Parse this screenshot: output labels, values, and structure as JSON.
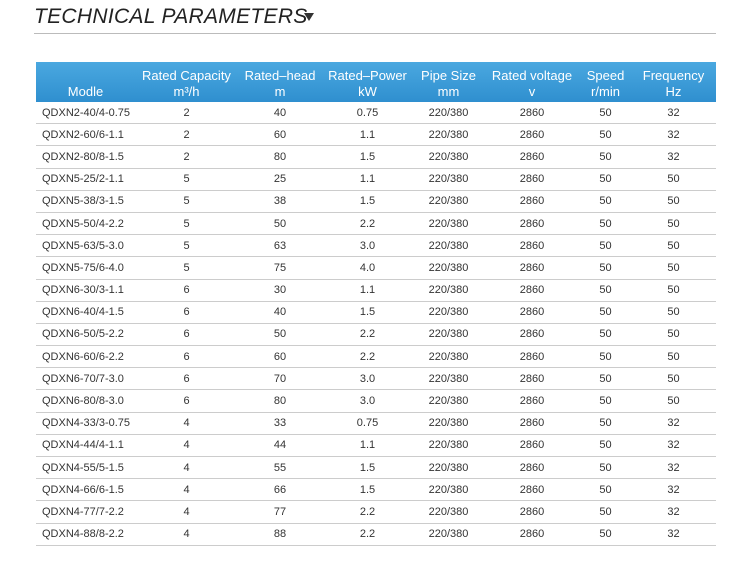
{
  "header": {
    "title": "TECHNICAL PARAMETERS"
  },
  "table": {
    "columns": [
      [
        "Modle"
      ],
      [
        "Rated Capacity",
        "m³/h"
      ],
      [
        "Rated–head",
        "m"
      ],
      [
        "Rated–Power",
        "kW"
      ],
      [
        "Pipe Size",
        "mm"
      ],
      [
        "Rated voltage",
        "v"
      ],
      [
        "Speed",
        "r/min"
      ],
      [
        "Frequency",
        "Hz"
      ]
    ],
    "rows": [
      [
        "QDXN2-40/4-0.75",
        "2",
        "40",
        "0.75",
        "220/380",
        "2860",
        "50",
        "32"
      ],
      [
        "QDXN2-60/6-1.1",
        "2",
        "60",
        "1.1",
        "220/380",
        "2860",
        "50",
        "32"
      ],
      [
        "QDXN2-80/8-1.5",
        "2",
        "80",
        "1.5",
        "220/380",
        "2860",
        "50",
        "32"
      ],
      [
        "QDXN5-25/2-1.1",
        "5",
        "25",
        "1.1",
        "220/380",
        "2860",
        "50",
        "50"
      ],
      [
        "QDXN5-38/3-1.5",
        "5",
        "38",
        "1.5",
        "220/380",
        "2860",
        "50",
        "50"
      ],
      [
        "QDXN5-50/4-2.2",
        "5",
        "50",
        "2.2",
        "220/380",
        "2860",
        "50",
        "50"
      ],
      [
        "QDXN5-63/5-3.0",
        "5",
        "63",
        "3.0",
        "220/380",
        "2860",
        "50",
        "50"
      ],
      [
        "QDXN5-75/6-4.0",
        "5",
        "75",
        "4.0",
        "220/380",
        "2860",
        "50",
        "50"
      ],
      [
        "QDXN6-30/3-1.1",
        "6",
        "30",
        "1.1",
        "220/380",
        "2860",
        "50",
        "50"
      ],
      [
        "QDXN6-40/4-1.5",
        "6",
        "40",
        "1.5",
        "220/380",
        "2860",
        "50",
        "50"
      ],
      [
        "QDXN6-50/5-2.2",
        "6",
        "50",
        "2.2",
        "220/380",
        "2860",
        "50",
        "50"
      ],
      [
        "QDXN6-60/6-2.2",
        "6",
        "60",
        "2.2",
        "220/380",
        "2860",
        "50",
        "50"
      ],
      [
        "QDXN6-70/7-3.0",
        "6",
        "70",
        "3.0",
        "220/380",
        "2860",
        "50",
        "50"
      ],
      [
        "QDXN6-80/8-3.0",
        "6",
        "80",
        "3.0",
        "220/380",
        "2860",
        "50",
        "50"
      ],
      [
        "QDXN4-33/3-0.75",
        "4",
        "33",
        "0.75",
        "220/380",
        "2860",
        "50",
        "32"
      ],
      [
        "QDXN4-44/4-1.1",
        "4",
        "44",
        "1.1",
        "220/380",
        "2860",
        "50",
        "32"
      ],
      [
        "QDXN4-55/5-1.5",
        "4",
        "55",
        "1.5",
        "220/380",
        "2860",
        "50",
        "32"
      ],
      [
        "QDXN4-66/6-1.5",
        "4",
        "66",
        "1.5",
        "220/380",
        "2860",
        "50",
        "32"
      ],
      [
        "QDXN4-77/7-2.2",
        "4",
        "77",
        "2.2",
        "220/380",
        "2860",
        "50",
        "32"
      ],
      [
        "QDXN4-88/8-2.2",
        "4",
        "88",
        "2.2",
        "220/380",
        "2860",
        "50",
        "32"
      ]
    ]
  }
}
